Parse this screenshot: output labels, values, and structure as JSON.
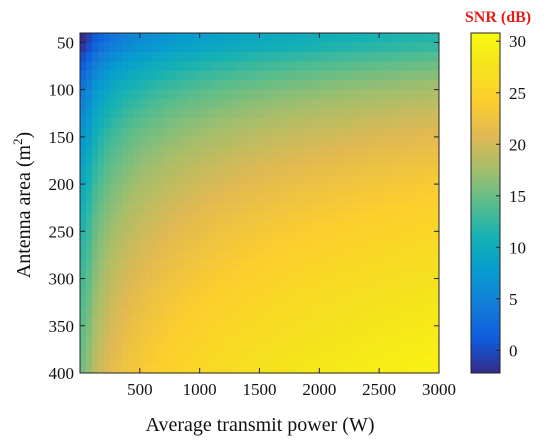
{
  "chart_data": {
    "type": "heatmap",
    "title": "",
    "xlabel": "Average transmit power (W)",
    "ylabel": "Antenna area (m²)",
    "ylabel_parts": {
      "before": "Antenna area (m",
      "sup": "2",
      "after": ")"
    },
    "xlim": [
      0,
      3000
    ],
    "ylim": [
      40,
      400
    ],
    "y_reversed": true,
    "x_ticks": [
      500,
      1000,
      1500,
      2000,
      2500,
      3000
    ],
    "y_ticks": [
      50,
      100,
      150,
      200,
      250,
      300,
      350,
      400
    ],
    "x_tick_labels": [
      "500",
      "1000",
      "1500",
      "2000",
      "2500",
      "3000"
    ],
    "y_tick_labels": [
      "50",
      "100",
      "150",
      "200",
      "250",
      "300",
      "350",
      "400"
    ],
    "z_model": "SNR rises with 10·log10(power) and 20·log10(area); about −2 dB at 50 W / 50 m², about 30 dB at 3000 W / 400 m²",
    "z_anchor_values": [
      {
        "x": 50,
        "y": 50,
        "z": -2
      },
      {
        "x": 3000,
        "y": 50,
        "z": 12
      },
      {
        "x": 50,
        "y": 400,
        "z": 16
      },
      {
        "x": 1500,
        "y": 250,
        "z": 25
      },
      {
        "x": 3000,
        "y": 400,
        "z": 30
      }
    ],
    "colorbar": {
      "title": "SNR (dB)",
      "title_color": "#e0201b",
      "range": [
        -2.2,
        30.8
      ],
      "ticks": [
        0,
        5,
        10,
        15,
        20,
        25,
        30
      ],
      "tick_labels": [
        "0",
        "5",
        "10",
        "15",
        "20",
        "25",
        "30"
      ],
      "colormap": "parula"
    }
  }
}
